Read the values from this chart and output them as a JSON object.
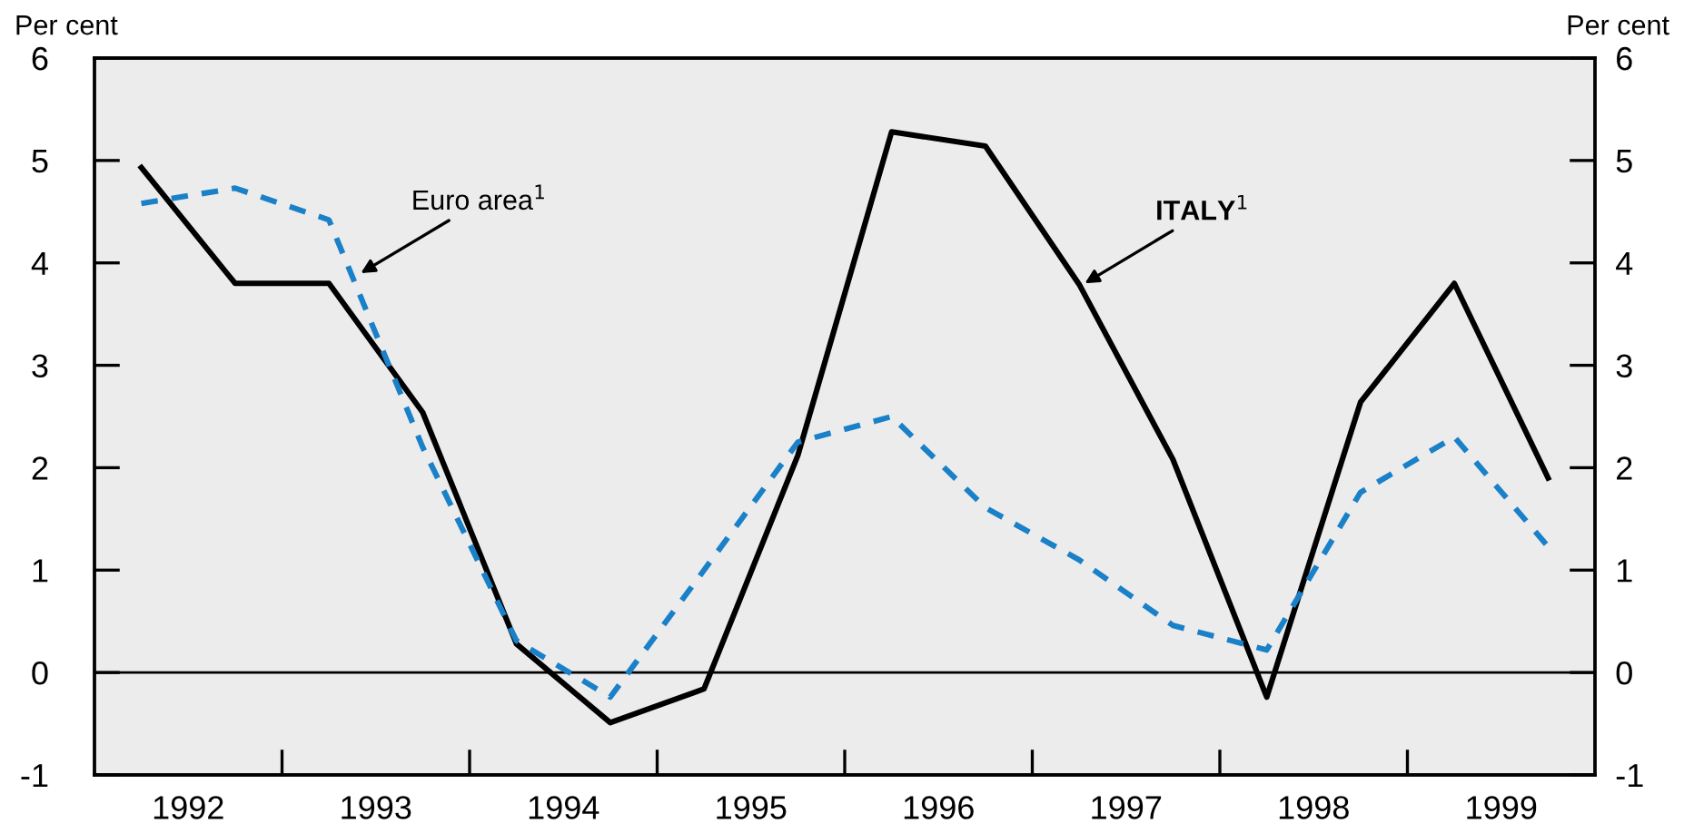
{
  "chart_data": {
    "type": "line",
    "ylabel": "Per cent",
    "y2label": "Per cent",
    "x": [
      1992.25,
      1992.75,
      1993.25,
      1993.75,
      1994.25,
      1994.75,
      1995.25,
      1995.75,
      1996.25,
      1996.75,
      1997.25,
      1997.75,
      1998.25,
      1998.75,
      1999.25,
      1999.75
    ],
    "series": [
      {
        "color": "#000000",
        "line_style": "solid",
        "values": [
          4.93,
          3.8,
          3.8,
          2.54,
          0.28,
          -0.49,
          -0.16,
          2.12,
          5.28,
          5.14,
          3.79,
          2.08,
          -0.24,
          2.64,
          3.8,
          1.9
        ]
      },
      {
        "color": "#1a80c8",
        "line_style": "dashed",
        "values": [
          4.58,
          4.73,
          4.42,
          2.2,
          0.31,
          -0.24,
          1.0,
          2.25,
          2.5,
          1.61,
          1.1,
          0.46,
          0.22,
          1.76,
          2.3,
          1.23
        ]
      }
    ],
    "xlim": [
      1992,
      2000
    ],
    "xticks": [
      {
        "value": 1992.5,
        "label": "1992"
      },
      {
        "value": 1993,
        "label": null
      },
      {
        "value": 1993.5,
        "label": "1993"
      },
      {
        "value": 1994,
        "label": null
      },
      {
        "value": 1994.5,
        "label": "1994"
      },
      {
        "value": 1995,
        "label": null
      },
      {
        "value": 1995.5,
        "label": "1995"
      },
      {
        "value": 1996,
        "label": null
      },
      {
        "value": 1996.5,
        "label": "1996"
      },
      {
        "value": 1997,
        "label": null
      },
      {
        "value": 1997.5,
        "label": "1997"
      },
      {
        "value": 1998,
        "label": null
      },
      {
        "value": 1998.5,
        "label": "1998"
      },
      {
        "value": 1999,
        "label": null
      },
      {
        "value": 1999.5,
        "label": "1999"
      }
    ],
    "ylim": [
      -1,
      6
    ],
    "yticks": [
      -1,
      0,
      1,
      2,
      3,
      4,
      5,
      6
    ],
    "y2lim": [
      -1,
      6
    ],
    "y2ticks": [
      -1,
      0,
      1,
      2,
      3,
      4,
      5,
      6
    ],
    "ref_lines": [
      {
        "axis": "y",
        "value": 0,
        "label": null,
        "color": "#000000"
      }
    ],
    "annotations": [
      {
        "text": "Euro area$^{1}$",
        "x": 1993.42,
        "y": 3.9
      },
      {
        "text": "ITALY$^{1}$",
        "x": 1997.28,
        "y": 3.8
      }
    ],
    "grid": false,
    "legend": false,
    "marker": "none"
  }
}
